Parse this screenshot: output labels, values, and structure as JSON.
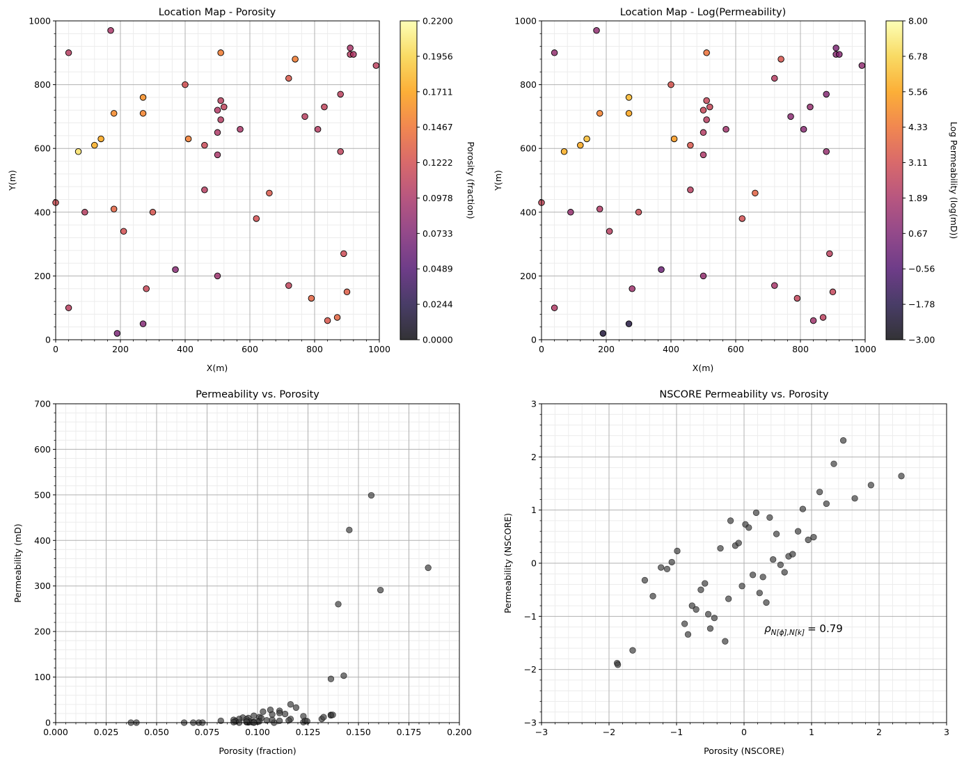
{
  "colors": {
    "inferno": [
      "#000004",
      "#1b0c41",
      "#4a0c6b",
      "#781c6d",
      "#a52c60",
      "#cf4446",
      "#ed6925",
      "#fb9b06",
      "#f7d13d",
      "#fcffa4"
    ],
    "marker_edge": "#000000",
    "gray_point": "#404040",
    "grid_major": "#b0b0b0",
    "grid_minor": "#ececec"
  },
  "chart_data": [
    {
      "id": "porosity-map",
      "type": "scatter",
      "title": "Location Map - Porosity",
      "xlabel": "X(m)",
      "ylabel": "Y(m)",
      "xlim": [
        0,
        1000
      ],
      "ylim": [
        0,
        1000
      ],
      "xticks": [
        "0",
        "200",
        "400",
        "600",
        "800",
        "1000"
      ],
      "yticks": [
        "0",
        "200",
        "400",
        "600",
        "800",
        "1000"
      ],
      "grid": true,
      "color_value": "porosity",
      "colorbar": {
        "label": "Porosity (fraction)",
        "vmin": 0.0,
        "vmax": 0.22,
        "ticks": [
          "0.0000",
          "0.0244",
          "0.0489",
          "0.0733",
          "0.0978",
          "0.1222",
          "0.1467",
          "0.1711",
          "0.1956",
          "0.2200"
        ]
      }
    },
    {
      "id": "logperm-map",
      "type": "scatter",
      "title": "Location Map - Log(Permeability)",
      "xlabel": "X(m)",
      "ylabel": "Y(m)",
      "xlim": [
        0,
        1000
      ],
      "ylim": [
        0,
        1000
      ],
      "xticks": [
        "0",
        "200",
        "400",
        "600",
        "800",
        "1000"
      ],
      "yticks": [
        "0",
        "200",
        "400",
        "600",
        "800",
        "1000"
      ],
      "grid": true,
      "color_value": "logperm",
      "colorbar": {
        "label": "Log Permeability (log(mD))",
        "vmin": -3.0,
        "vmax": 8.0,
        "ticks": [
          "−3.00",
          "−1.78",
          "−0.56",
          "0.67",
          "1.89",
          "3.11",
          "4.33",
          "5.56",
          "6.78",
          "8.00"
        ]
      }
    },
    {
      "id": "perm-vs-por",
      "type": "scatter",
      "title": "Permeability vs. Porosity",
      "xlabel": "Porosity (fraction)",
      "ylabel": "Permeability (mD)",
      "xlim": [
        0,
        0.22
      ],
      "ylim": [
        0,
        700
      ],
      "xticks": [
        "0.000",
        "0.025",
        "0.050",
        "0.075",
        "0.100",
        "0.125",
        "0.150",
        "0.175",
        "0.200"
      ],
      "yticks": [
        "0",
        "100",
        "200",
        "300",
        "400",
        "500",
        "600",
        "700"
      ],
      "grid": true
    },
    {
      "id": "nscore-scatter",
      "type": "scatter",
      "title": "NSCORE Permeability vs. Porosity",
      "xlabel": "Porosity (NSCORE)",
      "ylabel": "Permeability (NSCORE)",
      "xlim": [
        -3,
        3
      ],
      "ylim": [
        -3,
        3
      ],
      "xticks": [
        "−3",
        "−2",
        "−1",
        "0",
        "1",
        "2",
        "3"
      ],
      "yticks": [
        "−3",
        "−2",
        "−1",
        "0",
        "1",
        "2",
        "3"
      ],
      "grid": true,
      "annotation": {
        "rho_symbol": "ρ",
        "rho_subscript": "N[ϕ],N[k]",
        "rho_value": "= 0.79",
        "at": [
          0.3,
          -1.3
        ]
      },
      "points": [
        [
          -1.88,
          -1.88
        ],
        [
          -1.87,
          -1.91
        ],
        [
          -1.65,
          -1.64
        ],
        [
          -1.47,
          -0.32
        ],
        [
          -1.35,
          -0.62
        ],
        [
          -1.23,
          -0.08
        ],
        [
          -1.14,
          -0.11
        ],
        [
          -1.07,
          0.02
        ],
        [
          -0.99,
          0.23
        ],
        [
          -0.88,
          -1.14
        ],
        [
          -0.83,
          -1.34
        ],
        [
          -0.77,
          -0.8
        ],
        [
          -0.71,
          -0.87
        ],
        [
          -0.64,
          -0.5
        ],
        [
          -0.58,
          -0.38
        ],
        [
          -0.53,
          -0.96
        ],
        [
          -0.5,
          -1.23
        ],
        [
          -0.44,
          -1.03
        ],
        [
          -0.35,
          0.28
        ],
        [
          -0.28,
          -1.47
        ],
        [
          -0.23,
          -0.67
        ],
        [
          -0.2,
          0.8
        ],
        [
          -0.13,
          0.33
        ],
        [
          -0.08,
          0.38
        ],
        [
          -0.03,
          -0.43
        ],
        [
          0.02,
          0.73
        ],
        [
          0.07,
          0.67
        ],
        [
          0.13,
          -0.22
        ],
        [
          0.18,
          0.95
        ],
        [
          0.23,
          -0.56
        ],
        [
          0.28,
          -0.26
        ],
        [
          0.33,
          -0.74
        ],
        [
          0.38,
          0.86
        ],
        [
          0.43,
          0.07
        ],
        [
          0.48,
          0.55
        ],
        [
          0.54,
          -0.03
        ],
        [
          0.6,
          -0.17
        ],
        [
          0.66,
          0.13
        ],
        [
          0.72,
          0.17
        ],
        [
          0.8,
          0.6
        ],
        [
          0.87,
          1.02
        ],
        [
          0.95,
          0.44
        ],
        [
          1.03,
          0.49
        ],
        [
          1.12,
          1.34
        ],
        [
          1.22,
          1.12
        ],
        [
          1.33,
          1.87
        ],
        [
          1.47,
          2.31
        ],
        [
          1.64,
          1.22
        ],
        [
          1.88,
          1.47
        ],
        [
          2.33,
          1.64
        ]
      ]
    }
  ],
  "wells": [
    {
      "x": 0,
      "y": 430,
      "porosity": 0.119,
      "logperm": 2.7,
      "perm": 0.0
    },
    {
      "x": 40,
      "y": 900,
      "porosity": 0.105,
      "logperm": 1.2,
      "perm": 0.5
    },
    {
      "x": 40,
      "y": 100,
      "porosity": 0.107,
      "logperm": 2.05,
      "perm": 1.0
    },
    {
      "x": 70,
      "y": 590,
      "porosity": 0.203,
      "logperm": 5.83,
      "perm": 340.0
    },
    {
      "x": 90,
      "y": 400,
      "porosity": 0.105,
      "logperm": 1.3,
      "perm": 2.0
    },
    {
      "x": 120,
      "y": 610,
      "porosity": 0.177,
      "logperm": 5.67,
      "perm": 291.0
    },
    {
      "x": 140,
      "y": 630,
      "porosity": 0.172,
      "logperm": 6.21,
      "perm": 499.0
    },
    {
      "x": 170,
      "y": 970,
      "porosity": 0.098,
      "logperm": 1.15,
      "perm": 3.0
    },
    {
      "x": 180,
      "y": 710,
      "porosity": 0.157,
      "logperm": 4.64,
      "perm": 103.0
    },
    {
      "x": 180,
      "y": 410,
      "porosity": 0.135,
      "logperm": 2.07,
      "perm": 1.0
    },
    {
      "x": 190,
      "y": 20,
      "porosity": 0.07,
      "logperm": -2.2,
      "perm": 0.0
    },
    {
      "x": 210,
      "y": 340,
      "porosity": 0.122,
      "logperm": 2.3,
      "perm": 4.0
    },
    {
      "x": 270,
      "y": 760,
      "porosity": 0.16,
      "logperm": 6.05,
      "perm": 423.0
    },
    {
      "x": 270,
      "y": 710,
      "porosity": 0.154,
      "logperm": 5.56,
      "perm": 260.0
    },
    {
      "x": 270,
      "y": 50,
      "porosity": 0.075,
      "logperm": -2.0,
      "perm": 0.0
    },
    {
      "x": 280,
      "y": 160,
      "porosity": 0.115,
      "logperm": 1.55,
      "perm": 5.0
    },
    {
      "x": 300,
      "y": 400,
      "porosity": 0.125,
      "logperm": 2.95,
      "perm": 19.0
    },
    {
      "x": 370,
      "y": 220,
      "porosity": 0.078,
      "logperm": 0.05,
      "perm": 0.0
    },
    {
      "x": 400,
      "y": 800,
      "porosity": 0.122,
      "logperm": 3.25,
      "perm": 26.0
    },
    {
      "x": 410,
      "y": 630,
      "porosity": 0.15,
      "logperm": 5.28,
      "perm": 96.0
    },
    {
      "x": 460,
      "y": 610,
      "porosity": 0.117,
      "logperm": 3.35,
      "perm": 28.0
    },
    {
      "x": 460,
      "y": 470,
      "porosity": 0.105,
      "logperm": 2.32,
      "perm": 10.0
    },
    {
      "x": 500,
      "y": 720,
      "porosity": 0.102,
      "logperm": 2.72,
      "perm": 11.0
    },
    {
      "x": 500,
      "y": 650,
      "porosity": 0.1,
      "logperm": 2.18,
      "perm": 8.0
    },
    {
      "x": 500,
      "y": 580,
      "porosity": 0.097,
      "logperm": 1.95,
      "perm": 6.0
    },
    {
      "x": 500,
      "y": 200,
      "porosity": 0.09,
      "logperm": 1.2,
      "perm": 4.0
    },
    {
      "x": 510,
      "y": 900,
      "porosity": 0.15,
      "logperm": 4.2,
      "perm": 17.0
    },
    {
      "x": 510,
      "y": 750,
      "porosity": 0.108,
      "logperm": 2.69,
      "perm": 15.0
    },
    {
      "x": 510,
      "y": 690,
      "porosity": 0.104,
      "logperm": 2.25,
      "perm": 7.0
    },
    {
      "x": 520,
      "y": 730,
      "porosity": 0.111,
      "logperm": 2.7,
      "perm": 12.0
    },
    {
      "x": 570,
      "y": 660,
      "porosity": 0.098,
      "logperm": 1.6,
      "perm": 3.0
    },
    {
      "x": 620,
      "y": 380,
      "porosity": 0.122,
      "logperm": 3.05,
      "perm": 21.0
    },
    {
      "x": 660,
      "y": 460,
      "porosity": 0.128,
      "logperm": 3.7,
      "perm": 40.0
    },
    {
      "x": 720,
      "y": 820,
      "porosity": 0.128,
      "logperm": 2.2,
      "perm": 8.0
    },
    {
      "x": 720,
      "y": 170,
      "porosity": 0.112,
      "logperm": 1.8,
      "perm": 10.0
    },
    {
      "x": 740,
      "y": 880,
      "porosity": 0.15,
      "logperm": 3.3,
      "perm": 16.0
    },
    {
      "x": 770,
      "y": 700,
      "porosity": 0.106,
      "logperm": 0.98,
      "perm": 2.0
    },
    {
      "x": 790,
      "y": 130,
      "porosity": 0.135,
      "logperm": 2.62,
      "perm": 14.0
    },
    {
      "x": 810,
      "y": 660,
      "porosity": 0.104,
      "logperm": 0.92,
      "perm": 1.0
    },
    {
      "x": 830,
      "y": 730,
      "porosity": 0.111,
      "logperm": 1.3,
      "perm": 3.0
    },
    {
      "x": 840,
      "y": 60,
      "porosity": 0.127,
      "logperm": 1.6,
      "perm": 5.0
    },
    {
      "x": 870,
      "y": 70,
      "porosity": 0.136,
      "logperm": 2.4,
      "perm": 4.0
    },
    {
      "x": 880,
      "y": 770,
      "porosity": 0.108,
      "logperm": 0.8,
      "perm": 1.0
    },
    {
      "x": 880,
      "y": 590,
      "porosity": 0.11,
      "logperm": 1.3,
      "perm": 2.0
    },
    {
      "x": 890,
      "y": 270,
      "porosity": 0.118,
      "logperm": 2.4,
      "perm": 6.0
    },
    {
      "x": 900,
      "y": 150,
      "porosity": 0.131,
      "logperm": 2.65,
      "perm": 33.0
    },
    {
      "x": 910,
      "y": 915,
      "porosity": 0.097,
      "logperm": 0.6,
      "perm": 1.0
    },
    {
      "x": 910,
      "y": 895,
      "porosity": 0.104,
      "logperm": 0.95,
      "perm": 2.0
    },
    {
      "x": 920,
      "y": 895,
      "porosity": 0.1,
      "logperm": 0.85,
      "perm": 0.0
    },
    {
      "x": 990,
      "y": 860,
      "porosity": 0.108,
      "logperm": 1.1,
      "perm": 0.0
    },
    {
      "x": 10,
      "y": 10,
      "porosity": 0.041,
      "logperm": -2.5,
      "perm": 0.0,
      "hidden_map": true
    },
    {
      "x": 10,
      "y": 10,
      "porosity": 0.044,
      "logperm": -2.5,
      "perm": 0.0,
      "hidden_map": true
    },
    {
      "x": 10,
      "y": 10,
      "porosity": 0.08,
      "logperm": -2.5,
      "perm": 0.0,
      "hidden_map": true
    },
    {
      "x": 10,
      "y": 10,
      "porosity": 0.145,
      "logperm": 2.0,
      "perm": 8.0,
      "hidden_map": true
    },
    {
      "x": 10,
      "y": 10,
      "porosity": 0.146,
      "logperm": 2.0,
      "perm": 12.0,
      "hidden_map": true
    },
    {
      "x": 10,
      "y": 10,
      "porosity": 0.151,
      "logperm": 2.0,
      "perm": 17.0,
      "hidden_map": true
    },
    {
      "x": 10,
      "y": 10,
      "porosity": 0.118,
      "logperm": 2.0,
      "perm": 18.0,
      "hidden_map": true
    },
    {
      "x": 10,
      "y": 10,
      "porosity": 0.113,
      "logperm": 2.0,
      "perm": 24.0,
      "hidden_map": true
    },
    {
      "x": 10,
      "y": 10,
      "porosity": 0.137,
      "logperm": 2.0,
      "perm": 3.0,
      "hidden_map": true
    }
  ]
}
